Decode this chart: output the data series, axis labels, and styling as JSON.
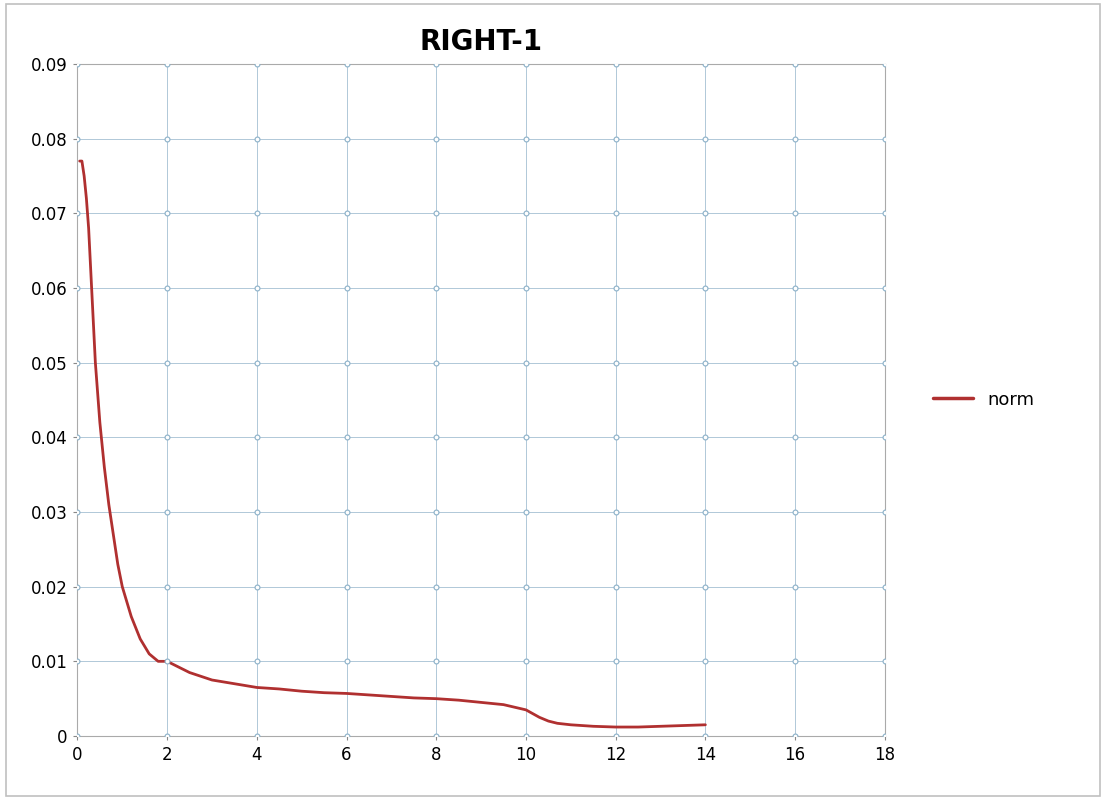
{
  "title": "RIGHT-1",
  "title_fontsize": 20,
  "title_fontweight": "bold",
  "legend_label": "norm",
  "line_color": "#b03030",
  "line_width": 2.0,
  "xlim": [
    0,
    18
  ],
  "ylim": [
    0,
    0.09
  ],
  "xticks": [
    0,
    2,
    4,
    6,
    8,
    10,
    12,
    14,
    16,
    18
  ],
  "yticks": [
    0,
    0.01,
    0.02,
    0.03,
    0.04,
    0.05,
    0.06,
    0.07,
    0.08,
    0.09
  ],
  "grid_color": "#b0c8d8",
  "grid_alpha": 1.0,
  "grid_linewidth": 0.7,
  "background_color": "#ffffff",
  "border_color": "#c0c0c0",
  "x_data": [
    0.05,
    0.1,
    0.15,
    0.2,
    0.25,
    0.3,
    0.35,
    0.4,
    0.5,
    0.6,
    0.7,
    0.8,
    0.9,
    1.0,
    1.2,
    1.4,
    1.6,
    1.8,
    2.0,
    2.5,
    3.0,
    3.5,
    4.0,
    4.5,
    5.0,
    5.5,
    6.0,
    6.5,
    7.0,
    7.5,
    8.0,
    8.5,
    9.0,
    9.5,
    10.0,
    10.3,
    10.5,
    10.7,
    11.0,
    11.5,
    12.0,
    12.5,
    13.0,
    13.5,
    14.0
  ],
  "y_data": [
    0.077,
    0.077,
    0.075,
    0.072,
    0.068,
    0.062,
    0.056,
    0.05,
    0.042,
    0.036,
    0.031,
    0.027,
    0.023,
    0.02,
    0.016,
    0.013,
    0.011,
    0.01,
    0.01,
    0.0085,
    0.0075,
    0.007,
    0.0065,
    0.0063,
    0.006,
    0.0058,
    0.0057,
    0.0055,
    0.0053,
    0.0051,
    0.005,
    0.0048,
    0.0045,
    0.0042,
    0.0035,
    0.0025,
    0.002,
    0.0017,
    0.0015,
    0.0013,
    0.0012,
    0.0012,
    0.0013,
    0.0014,
    0.0015
  ],
  "dot_color": "#8ab0c8",
  "dot_size": 3.5,
  "legend_fontsize": 13,
  "tick_labelsize": 12,
  "figure_border_color": "#b0b0b0",
  "figure_border_linewidth": 1.0
}
